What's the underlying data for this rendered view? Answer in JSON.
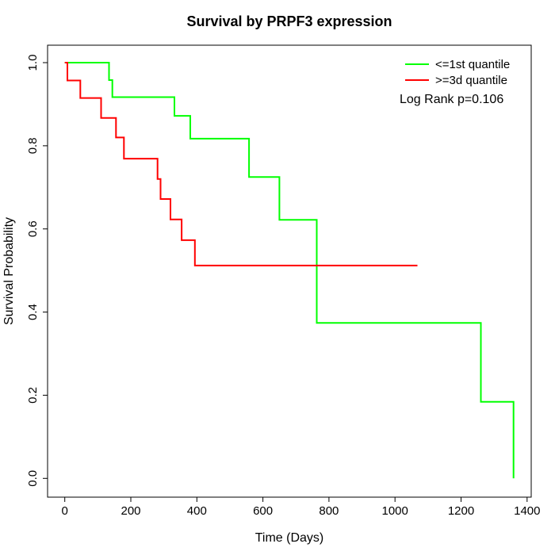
{
  "chart_data": {
    "type": "line",
    "subtype": "kaplan-meier-step",
    "title": "Survival by PRPF3 expression",
    "xlabel": "Time (Days)",
    "ylabel": "Survival Probability",
    "xlim": [
      0,
      1400
    ],
    "ylim": [
      0.0,
      1.0
    ],
    "grid": false,
    "x_tick_values": [
      0,
      200,
      400,
      600,
      800,
      1000,
      1200,
      1400
    ],
    "x_tick_labels": [
      "0",
      "200",
      "400",
      "600",
      "800",
      "1000",
      "1200",
      "1400"
    ],
    "y_tick_values": [
      0.0,
      0.2,
      0.4,
      0.6,
      0.8,
      1.0
    ],
    "y_tick_labels": [
      "0.0",
      "0.2",
      "0.4",
      "0.6",
      "0.8",
      "1.0"
    ],
    "legend_position": "top-right",
    "annotation": "Log Rank p=0.106",
    "series": [
      {
        "name": "<=1st quantile",
        "color": "#00ff00",
        "points": [
          [
            0,
            1.0
          ],
          [
            134,
            0.958
          ],
          [
            144,
            0.917
          ],
          [
            332,
            0.872
          ],
          [
            380,
            0.817
          ],
          [
            558,
            0.725
          ],
          [
            650,
            0.622
          ],
          [
            763,
            0.374
          ],
          [
            1260,
            0.184
          ],
          [
            1359,
            0.0
          ]
        ]
      },
      {
        "name": ">=3d quantile",
        "color": "#ff0000",
        "points": [
          [
            0,
            1.0
          ],
          [
            8,
            0.957
          ],
          [
            47,
            0.915
          ],
          [
            110,
            0.867
          ],
          [
            155,
            0.82
          ],
          [
            179,
            0.769
          ],
          [
            281,
            0.72
          ],
          [
            290,
            0.672
          ],
          [
            320,
            0.623
          ],
          [
            354,
            0.573
          ],
          [
            394,
            0.512
          ],
          [
            1068,
            0.512
          ]
        ]
      }
    ]
  }
}
